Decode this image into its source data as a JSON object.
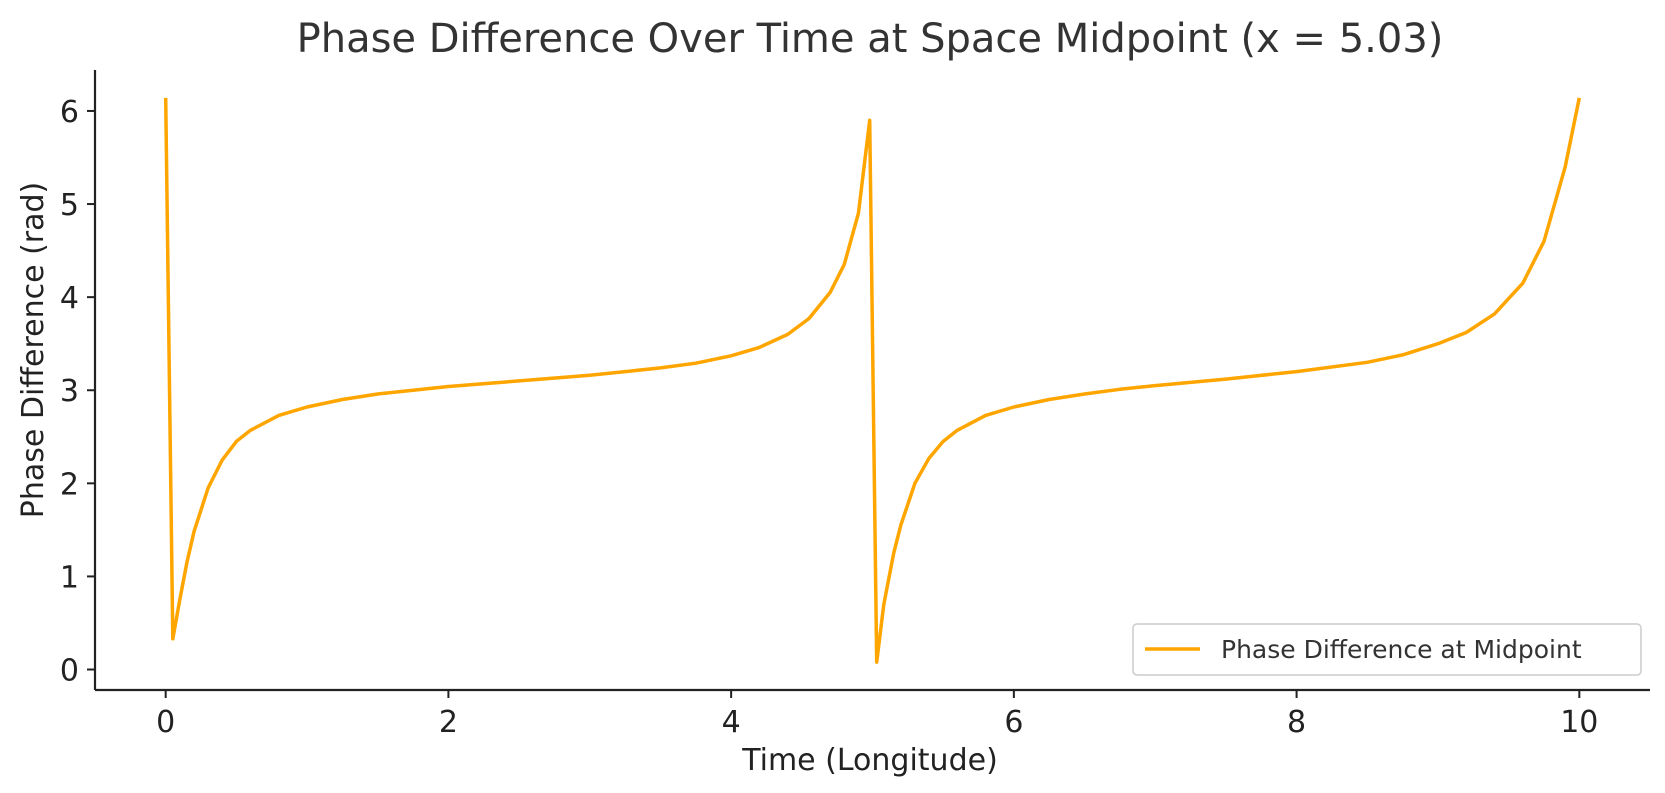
{
  "chart_data": {
    "type": "line",
    "title": "Phase Difference Over Time at Space Midpoint (x = 5.03)",
    "xlabel": "Time (Longitude)",
    "ylabel": "Phase Difference (rad)",
    "xlim": [
      -0.5,
      10.5
    ],
    "ylim": [
      -0.22,
      6.44
    ],
    "xticks": [
      0,
      2,
      4,
      6,
      8,
      10
    ],
    "xtick_labels": [
      "0",
      "2",
      "4",
      "6",
      "8",
      "10"
    ],
    "yticks": [
      0,
      1,
      2,
      3,
      4,
      5,
      6
    ],
    "ytick_labels": [
      "0",
      "1",
      "2",
      "3",
      "4",
      "5",
      "6"
    ],
    "grid": false,
    "legend_position": "lower-right",
    "series": [
      {
        "name": "Phase Difference at Midpoint",
        "color": "#FFA500",
        "x": [
          0.0,
          0.05,
          0.1,
          0.15,
          0.2,
          0.3,
          0.4,
          0.5,
          0.6,
          0.8,
          1.0,
          1.25,
          1.5,
          1.75,
          2.0,
          2.5,
          3.0,
          3.5,
          3.75,
          4.0,
          4.2,
          4.4,
          4.55,
          4.7,
          4.8,
          4.9,
          4.98,
          5.03,
          5.08,
          5.15,
          5.2,
          5.3,
          5.4,
          5.5,
          5.6,
          5.8,
          6.0,
          6.25,
          6.5,
          6.75,
          7.0,
          7.5,
          8.0,
          8.5,
          8.75,
          9.0,
          9.2,
          9.4,
          9.6,
          9.75,
          9.9,
          10.0
        ],
        "y": [
          6.14,
          0.33,
          0.75,
          1.15,
          1.48,
          1.95,
          2.25,
          2.45,
          2.57,
          2.73,
          2.82,
          2.9,
          2.96,
          3.0,
          3.04,
          3.1,
          3.16,
          3.24,
          3.29,
          3.37,
          3.46,
          3.6,
          3.77,
          4.05,
          4.35,
          4.9,
          5.9,
          0.08,
          0.7,
          1.25,
          1.55,
          2.0,
          2.27,
          2.45,
          2.57,
          2.73,
          2.82,
          2.9,
          2.96,
          3.01,
          3.05,
          3.12,
          3.2,
          3.3,
          3.38,
          3.5,
          3.62,
          3.82,
          4.15,
          4.6,
          5.4,
          6.14
        ]
      }
    ]
  }
}
